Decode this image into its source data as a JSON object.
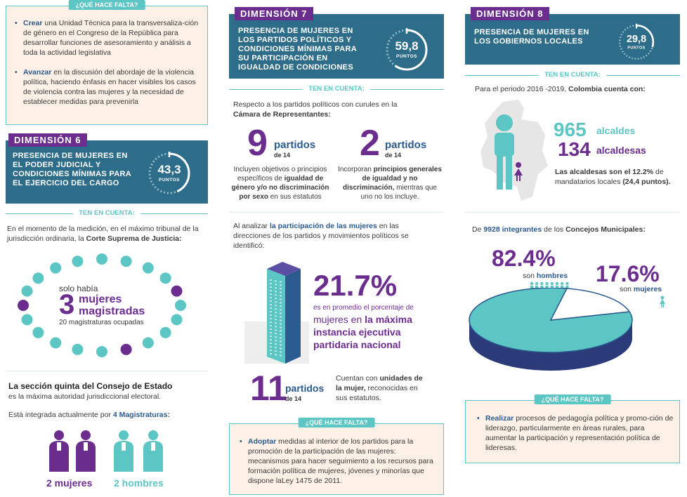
{
  "col1": {
    "need_tag": "¿QUÉ HACE FALTA?",
    "need_items": [
      {
        "verb": "Crear",
        "text": " una Unidad Técnica para la transversaliza-ción de género en el Congreso de la República para desarrollar funciones de asesoramiento y análisis a toda la actividad legislativa"
      },
      {
        "verb": "Avanzar",
        "text": " en la discusión del abordaje de la violencia política, haciendo énfasis en hacer visibles los casos de violencia contra las mujeres y la necesidad de establecer medidas para prevenirla"
      }
    ],
    "dim6": {
      "tag": "DIMENSIÓN 6",
      "title": "PRESENCIA DE MUJERES EN EL PODER JUDICIAL Y CONDICIONES MÍNIMAS PARA EL EJERCICIO DEL CARGO",
      "score": "43,3",
      "score_label": "PUNTOS",
      "score_fraction": 0.433
    },
    "ten_en_cuenta": "TEN EN CUENTA:",
    "court_intro_a": "En el momento de la medición, en el máximo tribunal de la jurisdicción ordinaria, la ",
    "court_intro_b": "Corte Suprema de Justicia:",
    "solo_habia": "solo había",
    "big_num": "3",
    "mujeres": "mujeres",
    "magistradas": "magistradas",
    "ocupadas": "20 magistraturas ocupadas",
    "consejo_title": "La sección quinta del Consejo de Estado",
    "consejo_sub": "es la máxima autoridad jurisdiccional electoral.",
    "integrada_a": "Está integrada actualmente por ",
    "integrada_b": "4 Magistraturas:",
    "women_label": "2 mujeres",
    "men_label": "2 hombres"
  },
  "col2": {
    "dim7": {
      "tag": "DIMENSIÓN 7",
      "title": "PRESENCIA DE MUJERES EN LOS PARTIDOS POLÍTICOS Y CONDICIONES MÍNIMAS PARA SU PARTICIPACIÓN EN IGUALDAD DE CONDICIONES",
      "score": "59,8",
      "score_label": "PUNTOS",
      "score_fraction": 0.598
    },
    "ten_en_cuenta": "TEN EN CUENTA:",
    "intro_a": "Respecto a los partidos políticos con curules en la ",
    "intro_b": "Cámara de Representantes:",
    "stat1": {
      "num": "9",
      "word": "partidos",
      "of": "de 14"
    },
    "stat1_text": [
      {
        "t": "Incluyen objetivos o principios específicos de ",
        "b": false
      },
      {
        "t": "igualdad de género y/o no discriminación por sexo",
        "b": true
      },
      {
        "t": " en sus estatutos",
        "b": false
      }
    ],
    "stat2": {
      "num": "2",
      "word": "partidos",
      "of": "de 14"
    },
    "stat2_text": [
      {
        "t": "Incorporan ",
        "b": false
      },
      {
        "t": "principios generales de igualdad y no discriminación,",
        "b": true
      },
      {
        "t": " mientras que uno no los incluye.",
        "b": false
      }
    ],
    "analisis_a": "Al analizar ",
    "analisis_b": "la participación de las mujeres",
    "analisis_c": " en las direcciones de los partidos y movimientos políticos se identificó:",
    "pct": "21.7%",
    "pct_line1": "es en promedio el porcentaje de",
    "pct_line2a": "mujeres en ",
    "pct_line2b": "la máxima",
    "pct_line3": "instancia ejecutiva",
    "pct_line4": "partidaria nacional",
    "pct_value": 21.7,
    "stat3": {
      "num": "11",
      "word": "partidos",
      "of": "de 14"
    },
    "stat3_a": "Cuentan con ",
    "stat3_b": "unidades de la mujer,",
    "stat3_c": " reconocidas en sus estatutos.",
    "need_tag": "¿QUÉ HACE FALTA?",
    "need_verb": "Adoptar",
    "need_text": " medidas al interior de los partidos para la promoción de la participación de las mujeres: mecanismos para hacer seguimiento a los recursos para formación política de mujeres, jóvenes y minorías que dispone laLey 1475 de 2011."
  },
  "col3": {
    "dim8": {
      "tag": "DIMENSIÓN 8",
      "title": "PRESENCIA DE MUJERES EN LOS GOBIERNOS LOCALES",
      "score": "29,8",
      "score_label": "PUNTOS",
      "score_fraction": 0.298
    },
    "ten_en_cuenta": "TEN EN CUENTA:",
    "periodo_a": "Para el periodo 2016 -2019, ",
    "periodo_b": "Colombia cuenta con:",
    "alcaldes_num": "965",
    "alcaldes_word": "alcaldes",
    "alcaldesas_num": "134",
    "alcaldesas_word": "alcaldesas",
    "alcaldesas_note_a": "Las alcaldesas son el 12.2%",
    "alcaldesas_note_b": " de mandatarios locales ",
    "alcaldesas_note_c": "(24,4 puntos).",
    "concejos_a": "De ",
    "concejos_b": "9928 integrantes",
    "concejos_c": " de los ",
    "concejos_d": "Concejos Municipales:",
    "men_pct": "82.4%",
    "men_label_a": "son ",
    "men_label_b": "hombres",
    "women_pct": "17.6%",
    "women_label_a": "son ",
    "women_label_b": "mujeres",
    "pie_women_fraction": 0.176,
    "need_tag": "¿QUÉ HACE FALTA?",
    "need_verb": "Realizar",
    "need_text": " procesos de pedagogía política y promo-ción de liderazgo, particularmente en áreas rurales, para aumentar la participación y representación política de lideresas."
  },
  "colors": {
    "purple": "#6b2d8e",
    "teal": "#5cc6c4",
    "banner": "#2e6d8a",
    "navy": "#2b5a8e",
    "cream": "#fdf1e7"
  }
}
